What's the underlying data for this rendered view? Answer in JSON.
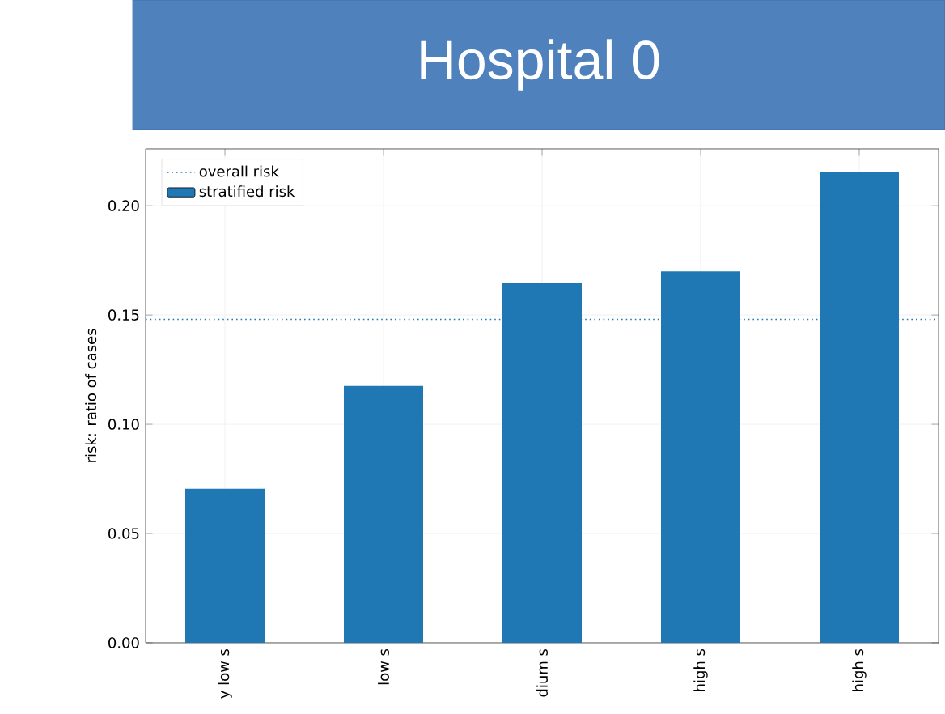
{
  "chart_data": {
    "type": "bar",
    "title": "Hospital 0",
    "ylabel": "risk: ratio of cases",
    "categories": [
      "y low s",
      "low s",
      "dium s",
      "high s",
      "high s"
    ],
    "series": [
      {
        "name": "stratified risk",
        "color": "#1f77b4",
        "values": [
          0.0705,
          0.1175,
          0.1645,
          0.17,
          0.2155
        ]
      }
    ],
    "ref_lines": [
      {
        "axis": "y",
        "value": 0.148,
        "label": "overall risk",
        "color": "#1f77b4",
        "line_style": "dotted"
      }
    ],
    "ylim": [
      0,
      0.226
    ],
    "yticks": [
      {
        "value": 0,
        "label": "0.00"
      },
      {
        "value": 0.05,
        "label": "0.05"
      },
      {
        "value": 0.1,
        "label": "0.10"
      },
      {
        "value": 0.15,
        "label": "0.15"
      },
      {
        "value": 0.2,
        "label": "0.20"
      }
    ],
    "grid": true,
    "legend": "top left"
  }
}
